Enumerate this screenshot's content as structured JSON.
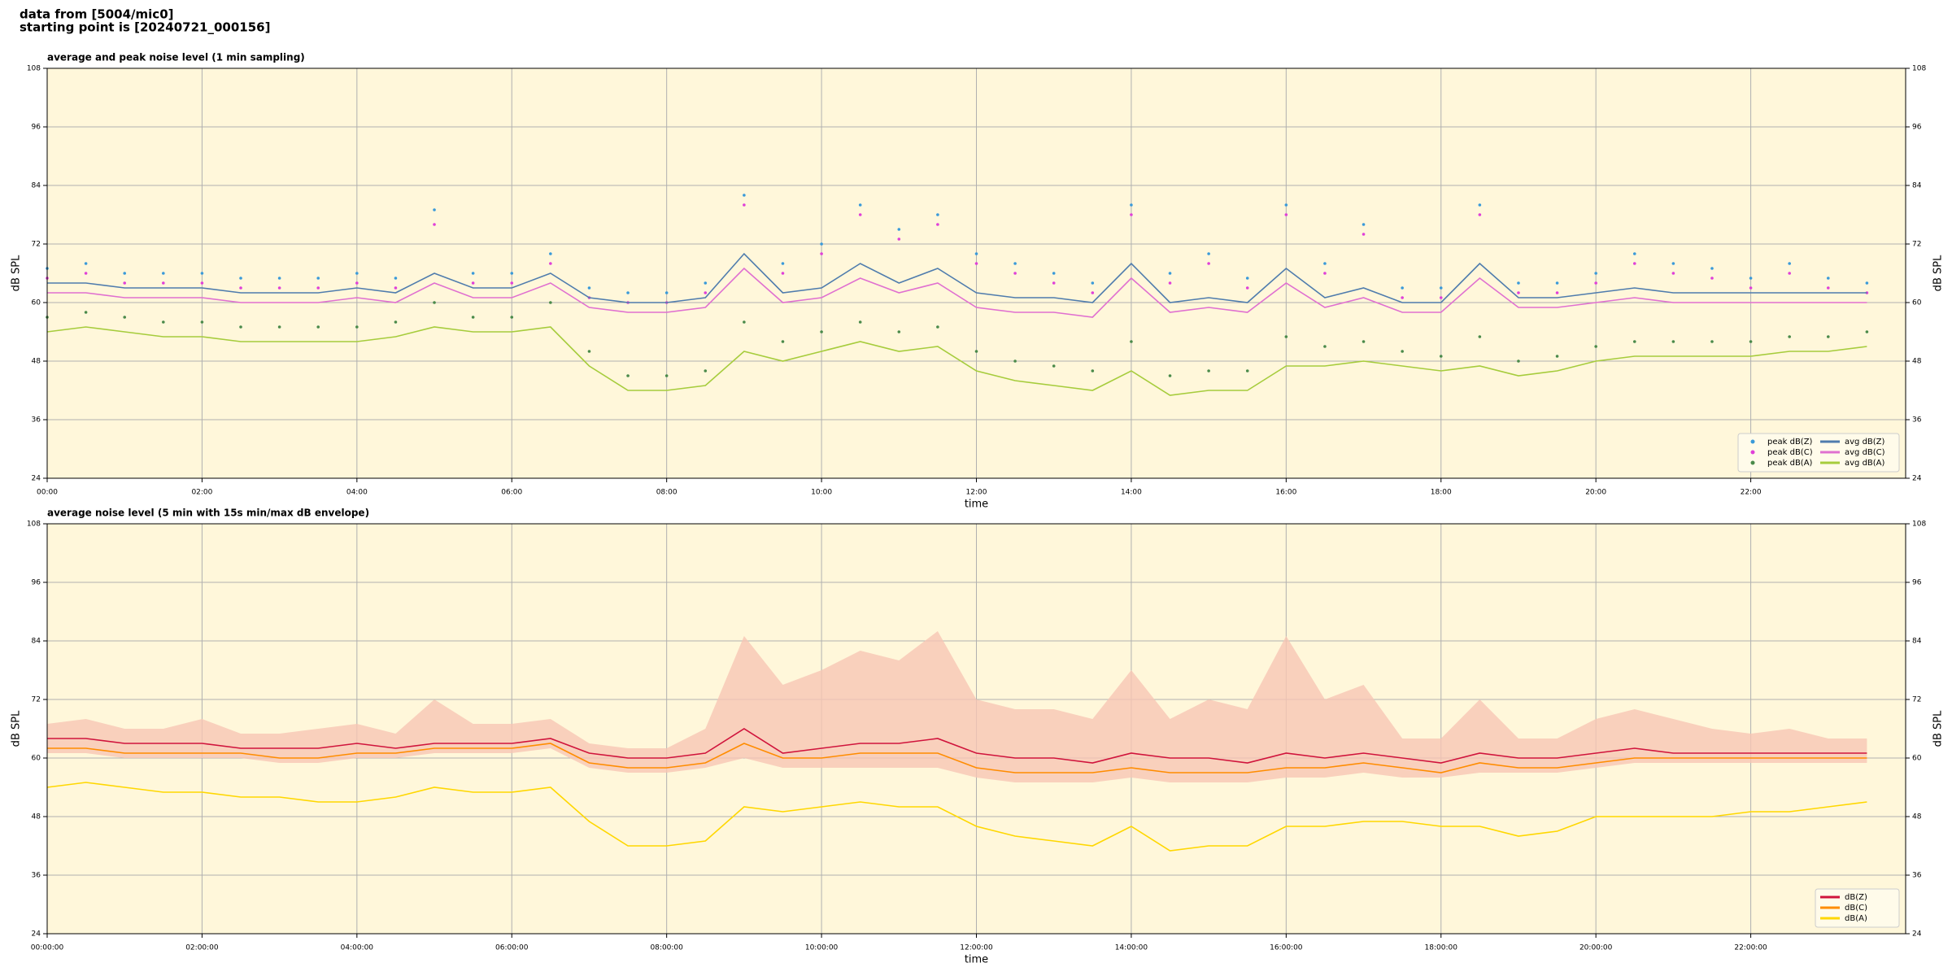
{
  "header": {
    "line1": "data from [5004/mic0]",
    "line2": "starting point is [20240721_000156]"
  },
  "chart_data": [
    {
      "type": "line",
      "title": "average and peak noise level (1 min sampling)",
      "xlabel": "time",
      "ylabel": "dB SPL",
      "xlim": [
        "00:00",
        "24:00"
      ],
      "ylim": [
        24,
        108
      ],
      "yticks": [
        24,
        36,
        48,
        60,
        72,
        84,
        96,
        108
      ],
      "xticks": [
        "00:00",
        "02:00",
        "04:00",
        "06:00",
        "08:00",
        "10:00",
        "12:00",
        "14:00",
        "16:00",
        "18:00",
        "20:00",
        "22:00"
      ],
      "grid": true,
      "legend": "lower right",
      "legend_columns": 2,
      "background": "#fff7da",
      "x": [
        "00:00",
        "00:30",
        "01:00",
        "01:30",
        "02:00",
        "02:30",
        "03:00",
        "03:30",
        "04:00",
        "04:30",
        "05:00",
        "05:30",
        "06:00",
        "06:30",
        "07:00",
        "07:30",
        "08:00",
        "08:30",
        "09:00",
        "09:30",
        "10:00",
        "10:30",
        "11:00",
        "11:30",
        "12:00",
        "12:30",
        "13:00",
        "13:30",
        "14:00",
        "14:30",
        "15:00",
        "15:30",
        "16:00",
        "16:30",
        "17:00",
        "17:30",
        "18:00",
        "18:30",
        "19:00",
        "19:30",
        "20:00",
        "20:30",
        "21:00",
        "21:30",
        "22:00",
        "22:30",
        "23:00",
        "23:30"
      ],
      "series": [
        {
          "name": "peak dB(Z)",
          "style": "dots",
          "color": "#3a9ad9",
          "values": [
            67,
            68,
            66,
            66,
            66,
            65,
            65,
            65,
            66,
            65,
            79,
            66,
            66,
            70,
            63,
            62,
            62,
            64,
            82,
            68,
            72,
            80,
            75,
            78,
            70,
            68,
            66,
            64,
            80,
            66,
            70,
            65,
            80,
            68,
            76,
            63,
            63,
            80,
            64,
            64,
            66,
            70,
            68,
            67,
            65,
            68,
            65,
            64
          ]
        },
        {
          "name": "peak dB(C)",
          "style": "dots",
          "color": "#e040d8",
          "values": [
            65,
            66,
            64,
            64,
            64,
            63,
            63,
            63,
            64,
            63,
            76,
            64,
            64,
            68,
            61,
            60,
            60,
            62,
            80,
            66,
            70,
            78,
            73,
            76,
            68,
            66,
            64,
            62,
            78,
            64,
            68,
            63,
            78,
            66,
            74,
            61,
            61,
            78,
            62,
            62,
            64,
            68,
            66,
            65,
            63,
            66,
            63,
            62
          ]
        },
        {
          "name": "peak dB(A)",
          "style": "dots",
          "color": "#4a8a4a",
          "values": [
            57,
            58,
            57,
            56,
            56,
            55,
            55,
            55,
            55,
            56,
            60,
            57,
            57,
            60,
            50,
            45,
            45,
            46,
            56,
            52,
            54,
            56,
            54,
            55,
            50,
            48,
            47,
            46,
            52,
            45,
            46,
            46,
            53,
            51,
            52,
            50,
            49,
            53,
            48,
            49,
            51,
            52,
            52,
            52,
            52,
            53,
            53,
            54
          ]
        },
        {
          "name": "avg dB(Z)",
          "style": "line",
          "color": "#4f7cad",
          "values": [
            64,
            64,
            63,
            63,
            63,
            62,
            62,
            62,
            63,
            62,
            66,
            63,
            63,
            66,
            61,
            60,
            60,
            61,
            70,
            62,
            63,
            68,
            64,
            67,
            62,
            61,
            61,
            60,
            68,
            60,
            61,
            60,
            67,
            61,
            63,
            60,
            60,
            68,
            61,
            61,
            62,
            63,
            62,
            62,
            62,
            62,
            62,
            62
          ]
        },
        {
          "name": "avg dB(C)",
          "style": "line",
          "color": "#e070d0",
          "values": [
            62,
            62,
            61,
            61,
            61,
            60,
            60,
            60,
            61,
            60,
            64,
            61,
            61,
            64,
            59,
            58,
            58,
            59,
            67,
            60,
            61,
            65,
            62,
            64,
            59,
            58,
            58,
            57,
            65,
            58,
            59,
            58,
            64,
            59,
            61,
            58,
            58,
            65,
            59,
            59,
            60,
            61,
            60,
            60,
            60,
            60,
            60,
            60
          ]
        },
        {
          "name": "avg dB(A)",
          "style": "line",
          "color": "#a6cc3c",
          "values": [
            54,
            55,
            54,
            53,
            53,
            52,
            52,
            52,
            52,
            53,
            55,
            54,
            54,
            55,
            47,
            42,
            42,
            43,
            50,
            48,
            50,
            52,
            50,
            51,
            46,
            44,
            43,
            42,
            46,
            41,
            42,
            42,
            47,
            47,
            48,
            47,
            46,
            47,
            45,
            46,
            48,
            49,
            49,
            49,
            49,
            50,
            50,
            51
          ]
        }
      ]
    },
    {
      "type": "line",
      "title": "average noise level (5 min with 15s min/max dB envelope)",
      "xlabel": "time",
      "ylabel": "dB SPL",
      "xlim": [
        "00:00",
        "24:00"
      ],
      "ylim": [
        24,
        108
      ],
      "yticks": [
        24,
        36,
        48,
        60,
        72,
        84,
        96,
        108
      ],
      "xticks": [
        "00:00:00",
        "02:00:00",
        "04:00:00",
        "06:00:00",
        "08:00:00",
        "10:00:00",
        "12:00:00",
        "14:00:00",
        "16:00:00",
        "18:00:00",
        "20:00:00",
        "22:00:00"
      ],
      "grid": true,
      "legend": "lower right",
      "legend_columns": 1,
      "background": "#fff7da",
      "x": [
        "00:00",
        "00:30",
        "01:00",
        "01:30",
        "02:00",
        "02:30",
        "03:00",
        "03:30",
        "04:00",
        "04:30",
        "05:00",
        "05:30",
        "06:00",
        "06:30",
        "07:00",
        "07:30",
        "08:00",
        "08:30",
        "09:00",
        "09:30",
        "10:00",
        "10:30",
        "11:00",
        "11:30",
        "12:00",
        "12:30",
        "13:00",
        "13:30",
        "14:00",
        "14:30",
        "15:00",
        "15:30",
        "16:00",
        "16:30",
        "17:00",
        "17:30",
        "18:00",
        "18:30",
        "19:00",
        "19:30",
        "20:00",
        "20:30",
        "21:00",
        "21:30",
        "22:00",
        "22:30",
        "23:00",
        "23:30"
      ],
      "envelope": {
        "color": "#f7c6b4",
        "upper": [
          67,
          68,
          66,
          66,
          68,
          65,
          65,
          66,
          67,
          65,
          72,
          67,
          67,
          68,
          63,
          62,
          62,
          66,
          85,
          75,
          78,
          82,
          80,
          86,
          72,
          70,
          70,
          68,
          78,
          68,
          72,
          70,
          85,
          72,
          75,
          64,
          64,
          72,
          64,
          64,
          68,
          70,
          68,
          66,
          65,
          66,
          64,
          64
        ],
        "lower": [
          61,
          61,
          60,
          60,
          60,
          60,
          59,
          59,
          60,
          60,
          61,
          61,
          61,
          62,
          58,
          57,
          57,
          58,
          60,
          58,
          58,
          58,
          58,
          58,
          56,
          55,
          55,
          55,
          56,
          55,
          55,
          55,
          56,
          56,
          57,
          56,
          56,
          57,
          57,
          57,
          58,
          59,
          59,
          59,
          59,
          59,
          59,
          59
        ]
      },
      "series": [
        {
          "name": "dB(Z)",
          "style": "line",
          "color": "#d0143c",
          "values": [
            64,
            64,
            63,
            63,
            63,
            62,
            62,
            62,
            63,
            62,
            63,
            63,
            63,
            64,
            61,
            60,
            60,
            61,
            66,
            61,
            62,
            63,
            63,
            64,
            61,
            60,
            60,
            59,
            61,
            60,
            60,
            59,
            61,
            60,
            61,
            60,
            59,
            61,
            60,
            60,
            61,
            62,
            61,
            61,
            61,
            61,
            61,
            61
          ]
        },
        {
          "name": "dB(C)",
          "style": "line",
          "color": "#ff8c00",
          "values": [
            62,
            62,
            61,
            61,
            61,
            61,
            60,
            60,
            61,
            61,
            62,
            62,
            62,
            63,
            59,
            58,
            58,
            59,
            63,
            60,
            60,
            61,
            61,
            61,
            58,
            57,
            57,
            57,
            58,
            57,
            57,
            57,
            58,
            58,
            59,
            58,
            57,
            59,
            58,
            58,
            59,
            60,
            60,
            60,
            60,
            60,
            60,
            60
          ]
        },
        {
          "name": "dB(A)",
          "style": "line",
          "color": "#ffd700",
          "values": [
            54,
            55,
            54,
            53,
            53,
            52,
            52,
            51,
            51,
            52,
            54,
            53,
            53,
            54,
            47,
            42,
            42,
            43,
            50,
            49,
            50,
            51,
            50,
            50,
            46,
            44,
            43,
            42,
            46,
            41,
            42,
            42,
            46,
            46,
            47,
            47,
            46,
            46,
            44,
            45,
            48,
            48,
            48,
            48,
            49,
            49,
            50,
            51
          ]
        }
      ]
    }
  ]
}
